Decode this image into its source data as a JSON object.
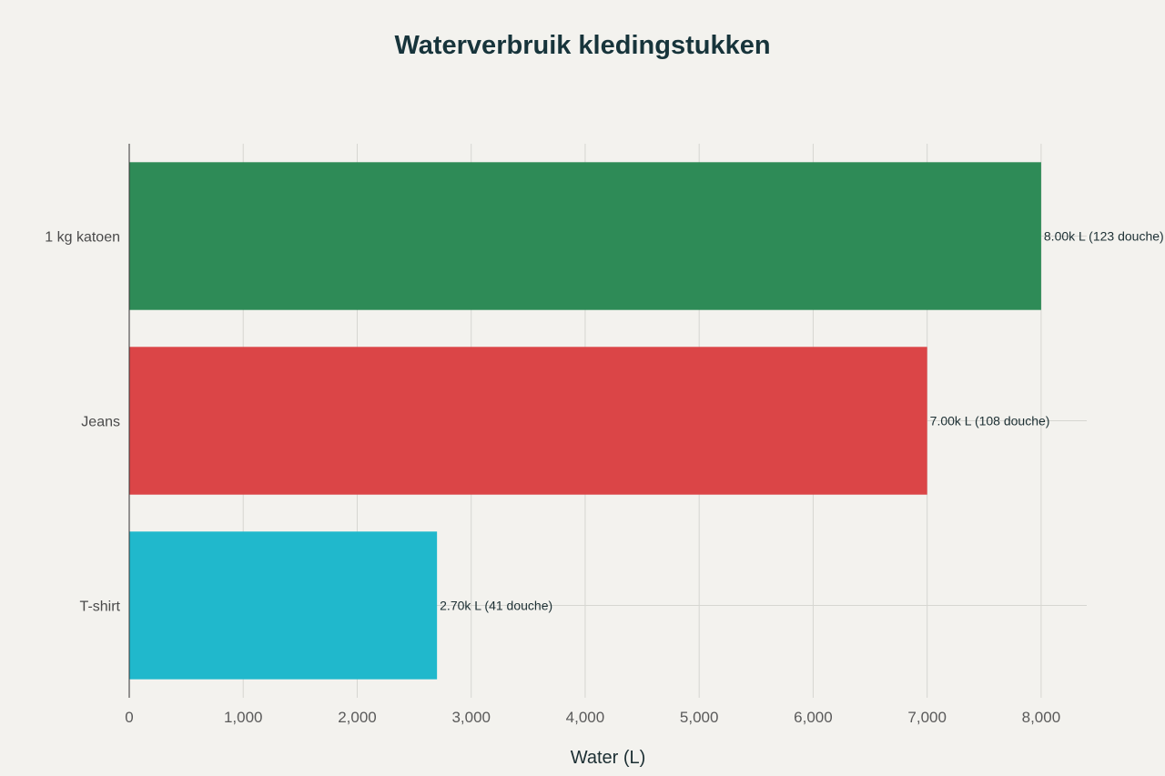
{
  "chart_data": {
    "type": "bar",
    "orientation": "horizontal",
    "title": "Waterverbruik kledingstukken",
    "xlabel": "Water (L)",
    "ylabel": "",
    "xlim": [
      0,
      8400
    ],
    "x_ticks": [
      0,
      1000,
      2000,
      3000,
      4000,
      5000,
      6000,
      7000,
      8000
    ],
    "x_tick_labels": [
      "0",
      "1,000",
      "2,000",
      "3,000",
      "4,000",
      "5,000",
      "6,000",
      "7,000",
      "8,000"
    ],
    "grid": true,
    "categories": [
      "1 kg katoen",
      "Jeans",
      "T-shirt"
    ],
    "values": [
      8000,
      7000,
      2700
    ],
    "data_labels": [
      "8.00k L (123 douche)",
      "7.00k L (108 douche)",
      "2.70k L (41 douche)"
    ],
    "colors": [
      "#2e8b57",
      "#db4547",
      "#20b8cc"
    ]
  }
}
